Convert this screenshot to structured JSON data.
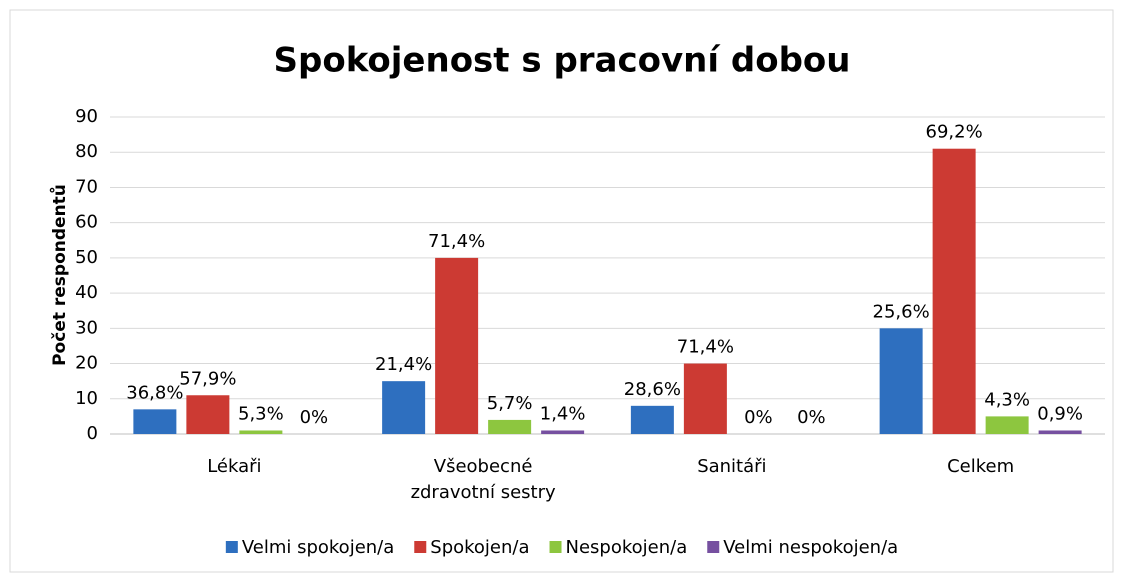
{
  "chart_data": {
    "type": "bar",
    "title": "Spokojenost s pracovní dobou",
    "y_label": "Počet respondentů",
    "categories": [
      "Lékaři",
      "Všeobecné zdravotní sestry",
      "Sanitáři",
      "Celkem"
    ],
    "series": [
      {
        "name": "Velmi spokojen/a",
        "color": "#2e6fbf",
        "values": [
          7,
          15,
          8,
          30
        ],
        "labels": [
          "36,8%",
          "21,4%",
          "28,6%",
          "25,6%"
        ]
      },
      {
        "name": "Spokojen/a",
        "color": "#cc3a33",
        "values": [
          11,
          50,
          20,
          81
        ],
        "labels": [
          "57,9%",
          "71,4%",
          "71,4%",
          "69,2%"
        ]
      },
      {
        "name": "Nespokojen/a",
        "color": "#8dc63f",
        "values": [
          1,
          4,
          0,
          5
        ],
        "labels": [
          "5,3%",
          "5,7%",
          "0%",
          "4,3%"
        ]
      },
      {
        "name": "Velmi nespokojen/a",
        "color": "#7650a0",
        "values": [
          0,
          1,
          0,
          1
        ],
        "labels": [
          "0%",
          "1,4%",
          "0%",
          "0,9%"
        ]
      }
    ],
    "ylim": [
      0,
      90
    ],
    "yticks": [
      0,
      10,
      20,
      30,
      40,
      50,
      60,
      70,
      80,
      90
    ],
    "grid": true,
    "legend": "bottom"
  }
}
